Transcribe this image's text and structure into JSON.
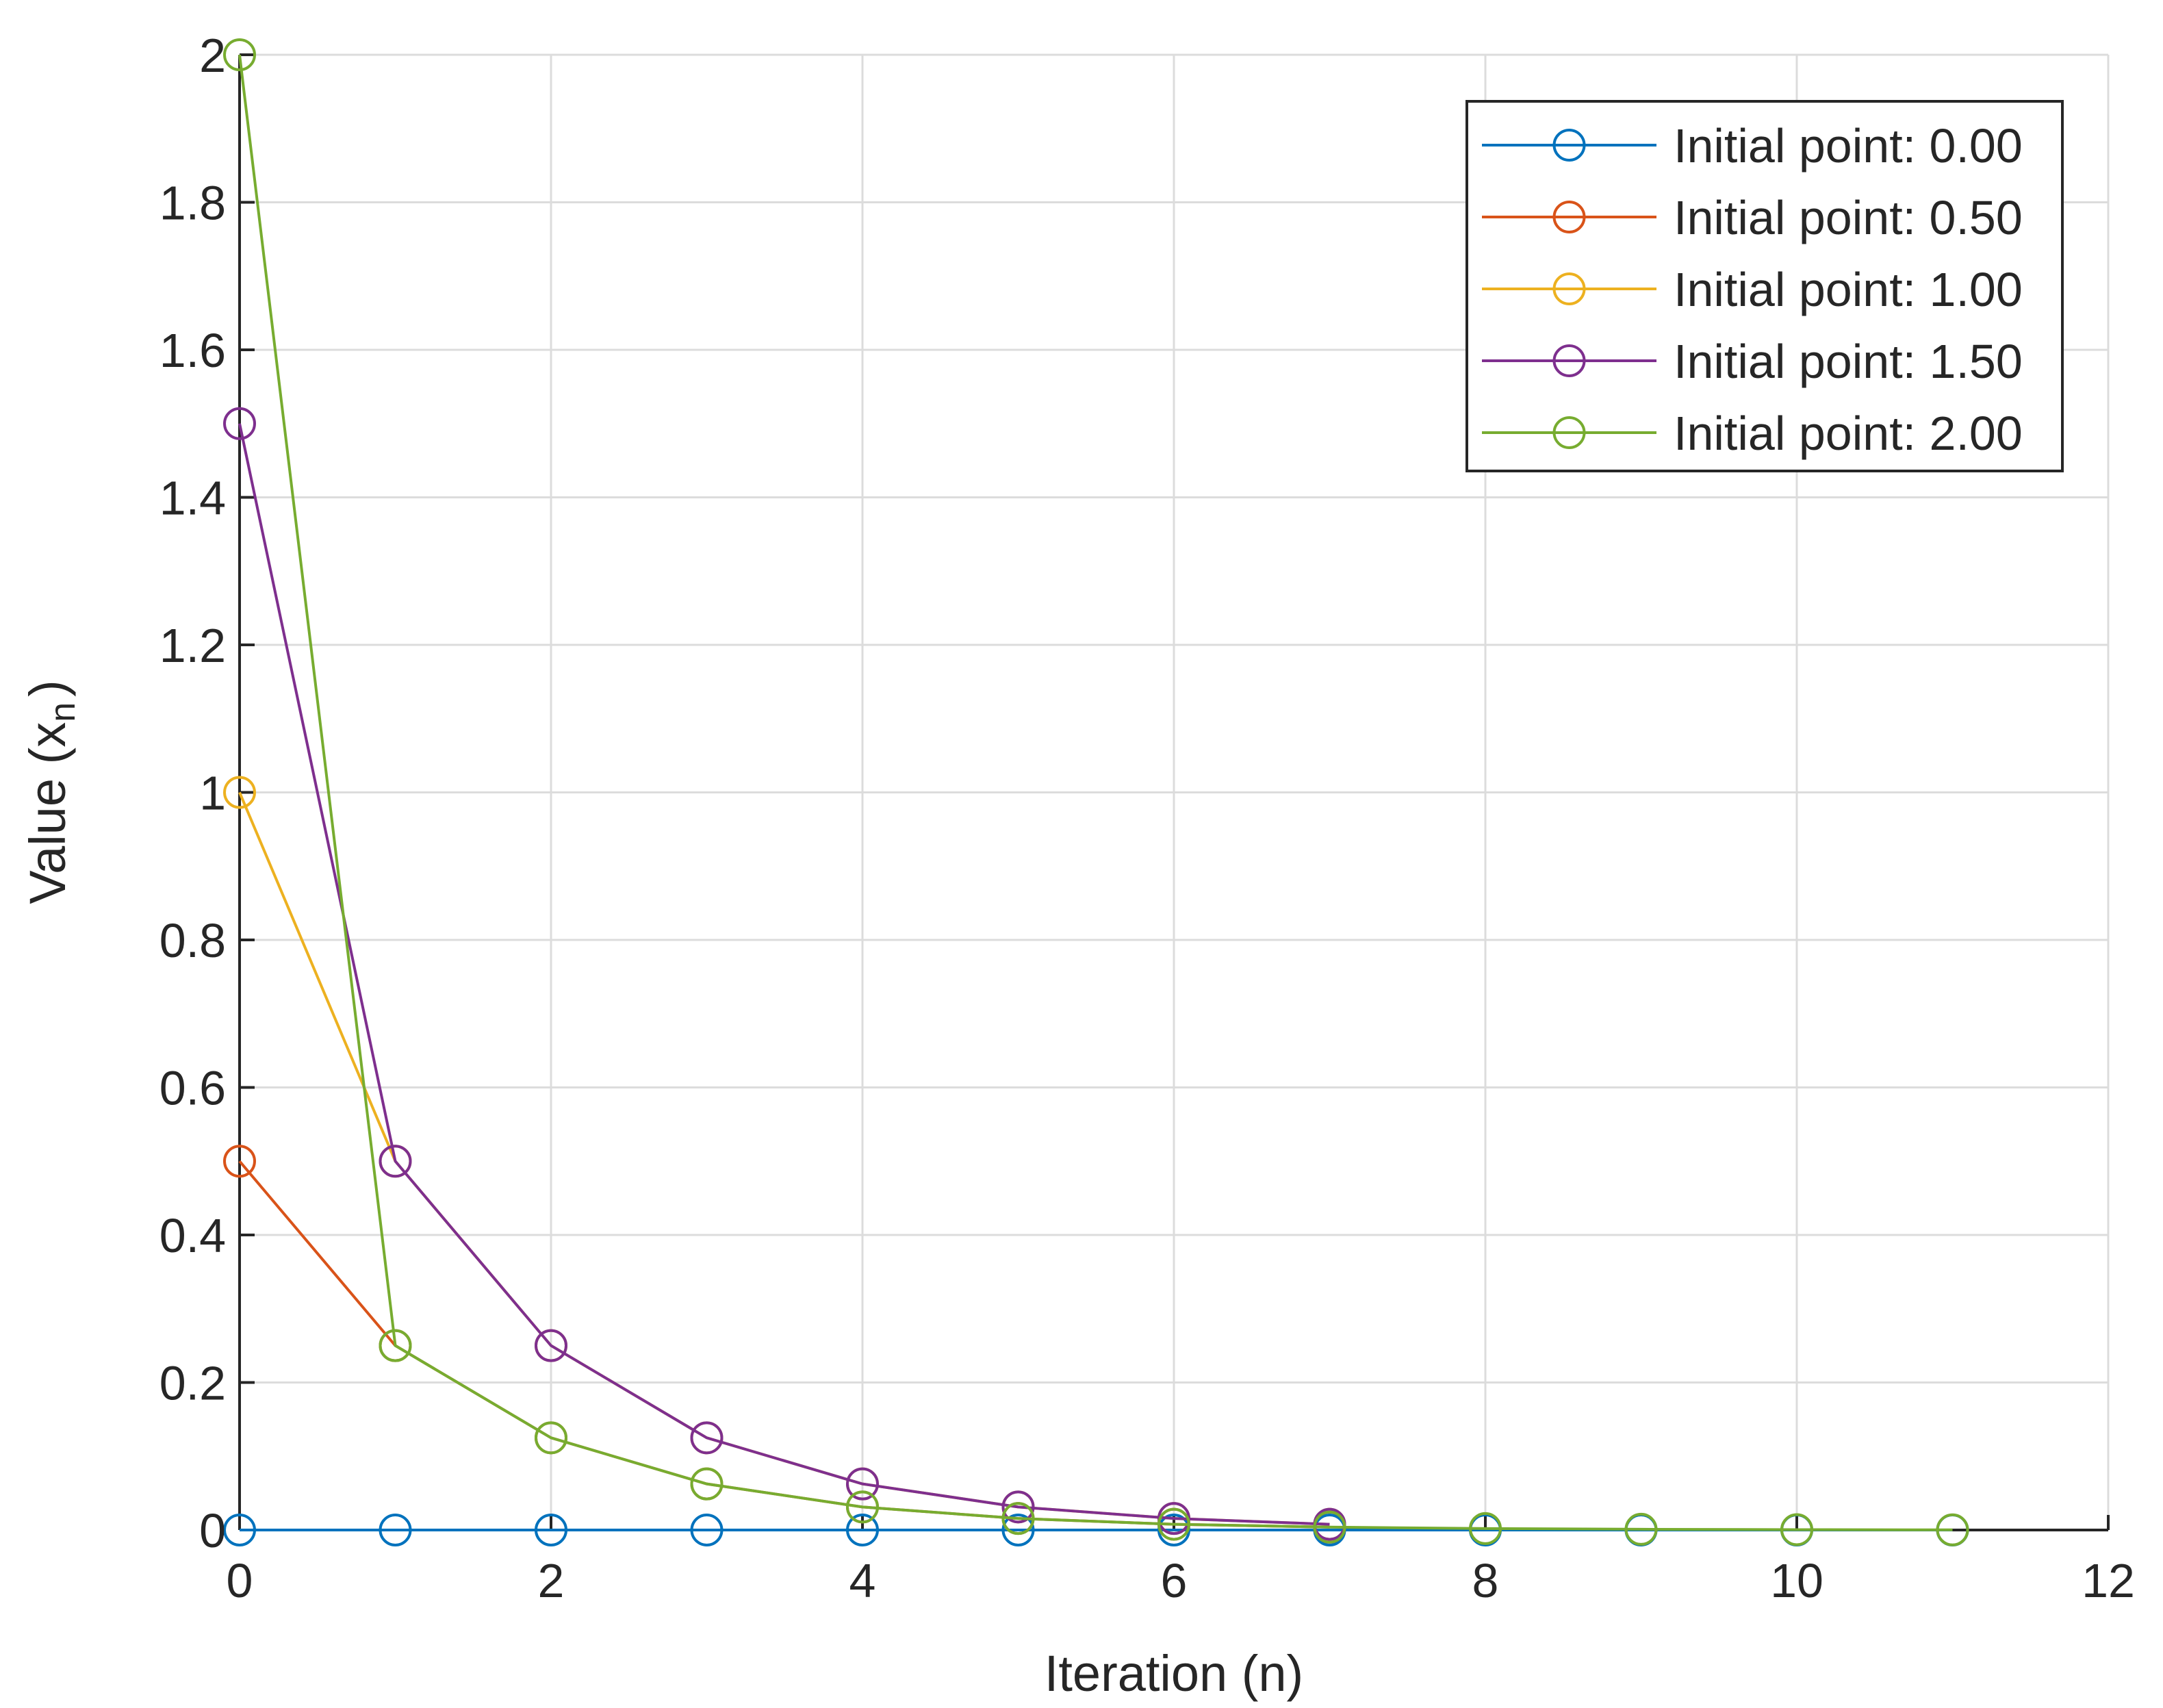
{
  "chart_data": {
    "type": "line",
    "xlabel": "Iteration (n)",
    "ylabel": "Value (x",
    "ylabel_subscript": "n",
    "ylabel_close": ")",
    "xlim": [
      0,
      12
    ],
    "ylim": [
      0,
      2
    ],
    "xticks": [
      "0",
      "2",
      "4",
      "6",
      "8",
      "10",
      "12"
    ],
    "yticks": [
      "0",
      "0.2",
      "0.4",
      "0.6",
      "0.8",
      "1",
      "1.2",
      "1.4",
      "1.6",
      "1.8",
      "2"
    ],
    "grid": true,
    "legend_position": "top-right",
    "marker": "circle",
    "series": [
      {
        "name": "Initial point: 0.00",
        "color": "#0072BD",
        "x": [
          0,
          1,
          2,
          3,
          4,
          5,
          6,
          7,
          8,
          9,
          10,
          11
        ],
        "y": [
          0,
          0,
          0,
          0,
          0,
          0,
          0,
          0,
          0,
          0,
          0,
          0
        ]
      },
      {
        "name": "Initial point: 0.50",
        "color": "#D95319",
        "x": [
          0,
          1,
          2,
          3,
          4,
          5,
          6,
          7
        ],
        "y": [
          0.5,
          0.25,
          0.125,
          0.0625,
          0.03125,
          0.015625,
          0.0078125,
          0.00390625
        ]
      },
      {
        "name": "Initial point: 1.00",
        "color": "#EDB120",
        "x": [
          0,
          1,
          2,
          3,
          4,
          5,
          6,
          7
        ],
        "y": [
          1.0,
          0.5,
          0.25,
          0.125,
          0.0625,
          0.03125,
          0.015625,
          0.0078125
        ]
      },
      {
        "name": "Initial point: 1.50",
        "color": "#7E2F8E",
        "x": [
          0,
          1,
          2,
          3,
          4,
          5,
          6,
          7
        ],
        "y": [
          1.5,
          0.5,
          0.25,
          0.125,
          0.0625,
          0.03125,
          0.015625,
          0.0078125
        ]
      },
      {
        "name": "Initial point: 2.00",
        "color": "#77AC30",
        "x": [
          0,
          1,
          2,
          3,
          4,
          5,
          6,
          7,
          8,
          9,
          10,
          11
        ],
        "y": [
          2.0,
          0.25,
          0.125,
          0.0625,
          0.03125,
          0.015625,
          0.0078125,
          0.0039,
          0.002,
          0.001,
          0.0005,
          0.0002
        ]
      }
    ]
  }
}
